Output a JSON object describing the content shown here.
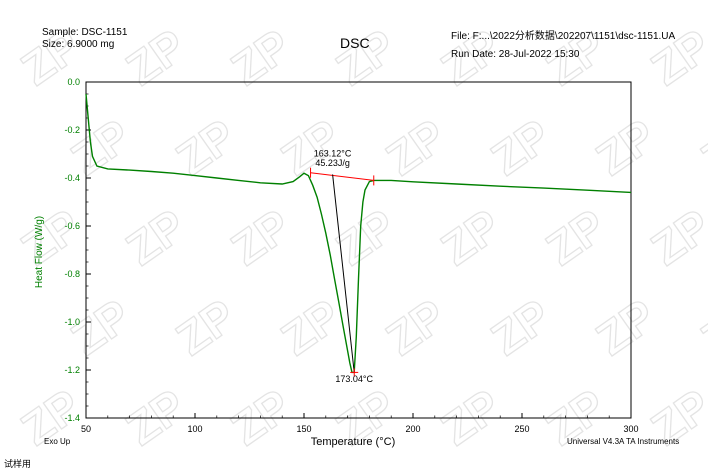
{
  "header": {
    "sample": "Sample: DSC-1151",
    "size": "Size:  6.9000 mg",
    "title": "DSC",
    "file": "File: F:...\\2022分析数据\\202207\\1151\\dsc-1151.UA",
    "run_date": "Run Date: 28-Jul-2022 15:30"
  },
  "footer": {
    "exo": "Exo Up",
    "instrument": "Universal V4.3A TA Instruments",
    "cut_label": "试样用"
  },
  "watermark": "ZP",
  "colors": {
    "curve": "#008000",
    "accent": "#ff0000",
    "frame": "#000000"
  },
  "chart_data": {
    "type": "line",
    "xlabel": "Temperature (°C)",
    "ylabel": "Heat Flow (W/g)",
    "xlim": [
      50,
      300
    ],
    "ylim": [
      -1.4,
      0.0
    ],
    "x_ticks": [
      50,
      100,
      150,
      200,
      250,
      300
    ],
    "y_ticks": [
      0.0,
      -0.2,
      -0.4,
      -0.6,
      -0.8,
      -1.0,
      -1.2,
      -1.4
    ],
    "y_tick_labels": [
      "0.0",
      "-0.2",
      "-0.4",
      "-0.6",
      "-0.8",
      "-1.0",
      "-1.2",
      "-1.4"
    ],
    "series": [
      {
        "x": [
          50,
          51,
          52,
          53,
          55,
          60,
          70,
          80,
          90,
          100,
          110,
          120,
          130,
          140,
          145,
          148,
          150,
          152,
          154,
          156,
          158,
          160,
          162,
          164,
          166,
          168,
          170,
          171,
          172,
          173.04,
          174,
          175,
          176,
          177,
          178,
          180,
          182,
          185,
          190,
          200,
          220,
          240,
          260,
          280,
          300
        ],
        "y": [
          -0.05,
          -0.15,
          -0.25,
          -0.31,
          -0.35,
          -0.362,
          -0.367,
          -0.373,
          -0.38,
          -0.39,
          -0.4,
          -0.41,
          -0.42,
          -0.425,
          -0.415,
          -0.395,
          -0.38,
          -0.39,
          -0.43,
          -0.48,
          -0.55,
          -0.63,
          -0.72,
          -0.82,
          -0.92,
          -1.02,
          -1.12,
          -1.17,
          -1.21,
          -1.21,
          -1.06,
          -0.82,
          -0.6,
          -0.5,
          -0.45,
          -0.415,
          -0.41,
          -0.41,
          -0.41,
          -0.416,
          -0.425,
          -0.434,
          -0.442,
          -0.451,
          -0.46
        ]
      }
    ],
    "baseline": {
      "x": [
        153,
        182
      ],
      "y": [
        -0.378,
        -0.41
      ]
    },
    "onset_tangent": {
      "x": [
        163.12,
        173.04
      ],
      "y": [
        -0.385,
        -1.21
      ]
    },
    "annotations": [
      {
        "text": "163.12°C",
        "x": 163.12,
        "y": -0.31
      },
      {
        "text": "45.23J/g",
        "x": 163.12,
        "y": -0.35
      },
      {
        "text": "173.04°C",
        "x": 173.04,
        "y": -1.25
      }
    ]
  }
}
